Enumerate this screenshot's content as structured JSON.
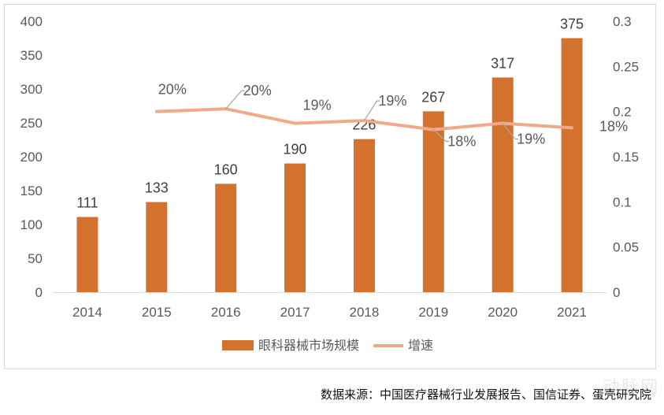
{
  "chart_data": {
    "type": "bar+line",
    "categories": [
      "2014",
      "2015",
      "2016",
      "2017",
      "2018",
      "2019",
      "2020",
      "2021"
    ],
    "series": [
      {
        "name": "眼科器械市场规模",
        "type": "bar",
        "axis": "left",
        "values": [
          111,
          133,
          160,
          190,
          226,
          267,
          317,
          375
        ],
        "labels": [
          "111",
          "133",
          "160",
          "190",
          "226",
          "267",
          "317",
          "375"
        ]
      },
      {
        "name": "增速",
        "type": "line",
        "axis": "right",
        "values": [
          null,
          0.2,
          0.203,
          0.187,
          0.19,
          0.18,
          0.187,
          0.182
        ],
        "labels": [
          "",
          "20%",
          "20%",
          "19%",
          "19%",
          "18%",
          "19%",
          "18%"
        ]
      }
    ],
    "y_left": {
      "min": 0,
      "max": 400,
      "ticks": [
        "0",
        "50",
        "100",
        "150",
        "200",
        "250",
        "300",
        "350",
        "400"
      ]
    },
    "y_right": {
      "min": 0,
      "max": 0.3,
      "ticks": [
        "0",
        "0.05",
        "0.1",
        "0.15",
        "0.2",
        "0.25",
        "0.3"
      ]
    },
    "legend_position": "bottom",
    "colors": {
      "bar": "#D2722E",
      "line": "#F0A98A",
      "text": "#595959",
      "leader": "#a6a6a6"
    }
  },
  "source_text": "数据来源：中国医疗器械行业发展报告、国信证券、蛋壳研究院",
  "watermark": "动脉网"
}
